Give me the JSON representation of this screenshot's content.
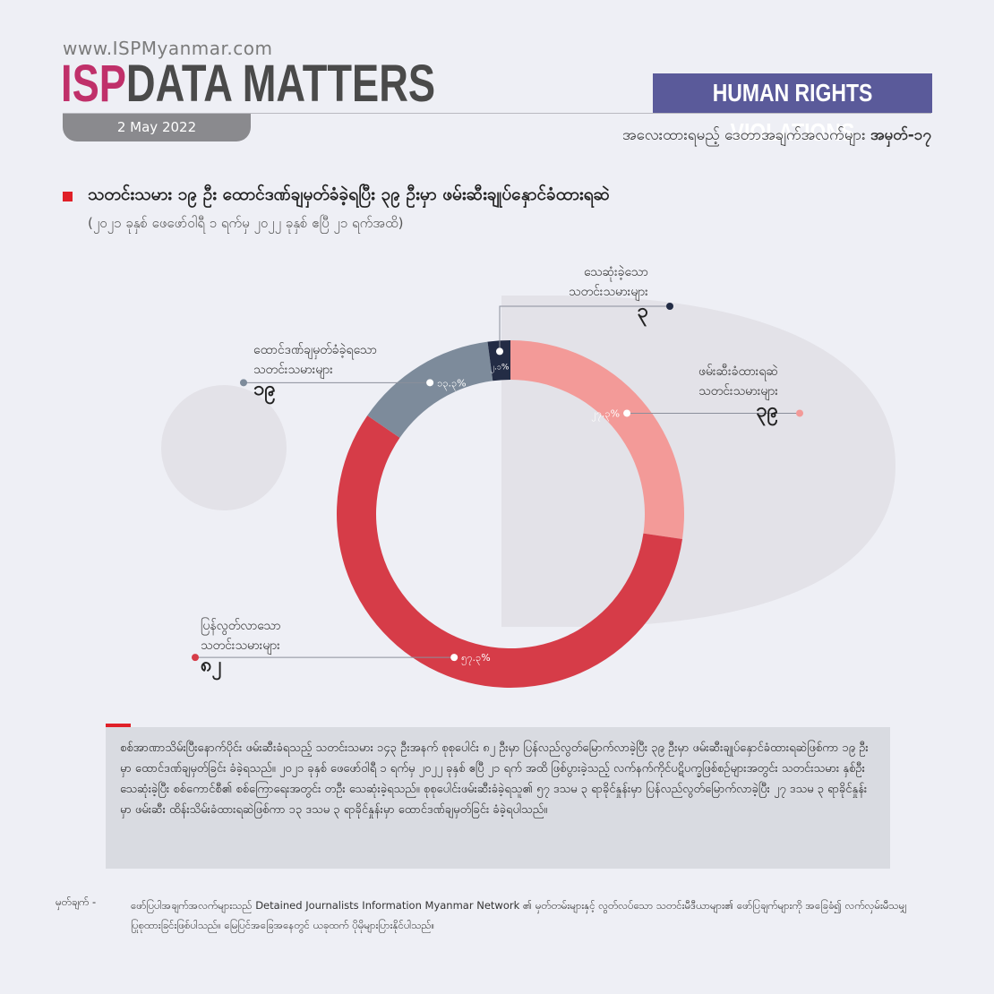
{
  "header": {
    "url": "www.ISPMyanmar.com",
    "brand_isp": "ISP",
    "brand_rest": "DATA MATTERS",
    "date": "2 May 2022",
    "category": "HUMAN RIGHTS VIOLATIONS",
    "series_label": "အလေးထားရမည့် ဒေတာအချက်အလက်များ",
    "series_number": "အမှတ်-၁၇"
  },
  "chart_data": {
    "type": "pie",
    "title": "သတင်းသမား ၁၉ ဦး ထောင်ဒဏ်ချမှတ်ခံခဲ့ရပြီး ၃၉ ဦးမှာ ဖမ်းဆီးချုပ်နှောင်ခံထားရဆဲ",
    "subtitle": "(၂၀၂၁ ခုနှစ် ဖေဖော်ဝါရီ ၁ ရက်မှ ၂၀၂၂ ခုနှစ် ဧပြီ ၂၁ ရက်အထိ)",
    "legend_position": "none",
    "slices": [
      {
        "name": "ဖမ်းဆီးခံထားရဆဲ\nသတင်းသမားများ",
        "count": "၃၉",
        "value": 27.3,
        "pct_label": "၂၇.၃%",
        "color": "#f39a98"
      },
      {
        "name": "ပြန်လွတ်လာသော\nသတင်းသမားများ",
        "count": "၈၂",
        "value": 57.3,
        "pct_label": "၅၇.၃%",
        "color": "#d63c48"
      },
      {
        "name": "ထောင်ဒဏ်ချမှတ်ခံခဲ့ရသော\nသတင်းသမားများ",
        "count": "၁၉",
        "value": 13.3,
        "pct_label": "၁၃.၃%",
        "color": "#7d8b9b"
      },
      {
        "name": "သေဆုံးခဲ့သော\nသတင်းသမားများ",
        "count": "၃",
        "value": 2.1,
        "pct_label": "၂.၁%",
        "color": "#232c45"
      }
    ]
  },
  "summary": "စစ်အာဏာသိမ်းပြီးနောက်ပိုင်း ဖမ်းဆီးခံရသည့် သတင်းသမား ၁၄၃ ဦးအနက် စုစုပေါင်း ၈၂ ဦးမှာ ပြန်လည်လွတ်မြောက်လာခဲ့ပြီး ၃၉ ဦးမှာ ဖမ်းဆီးချုပ်နှောင်ခံထားရဆဲဖြစ်ကာ ၁၉ ဦးမှာ ထောင်ဒဏ်ချမှတ်ခြင်း ခံခဲ့ရသည်။ ၂၀၂၁ ခုနှစ် ဖေဖော်ဝါရီ ၁ ရက်မှ ၂၀၂၂ ခုနှစ် ဧပြီ ၂၁ ရက် အထိ ဖြစ်ပွားခဲ့သည့် လက်နက်ကိုင်ပဋိပက္ခဖြစ်စဉ်များအတွင်း သတင်းသမား နှစ်ဦး သေဆုံးခဲ့ပြီး စစ်ကောင်စီ၏ စစ်ကြောရေးအတွင်း တဦး သေဆုံးခဲ့ရသည်။ စုစုပေါင်းဖမ်းဆီးခံခဲ့ရသူ၏ ၅၇ ဒသမ ၃ ရာခိုင်နှုန်းမှာ ပြန်လည်လွတ်မြောက်လာခဲ့ပြီး ၂၇ ဒသမ ၃ ရာခိုင်နှုန်းမှာ ဖမ်းဆီး ထိန်းသိမ်းခံထားရဆဲဖြစ်ကာ ၁၃ ဒသမ ၃ ရာခိုင်နှုန်းမှာ ထောင်ဒဏ်ချမှတ်ခြင်း ခံခဲ့ရပါသည်။",
  "note": {
    "key": "မှတ်ချက် -",
    "text": "ဖော်ပြပါအချက်အလက်များသည် Detained Journalists Information Myanmar Network ၏ မှတ်တမ်းများနှင့် လွတ်လပ်သော သတင်းမီဒီယာများ၏ ဖော်ပြချက်များကို အခြေခံ၍ လက်လှမ်းမီသမျှ ပြုစုထားခြင်းဖြစ်ပါသည်။ မြေပြင်အခြေအနေတွင် ယခုထက် ပိုမိုများပြားနိုင်ပါသည်။"
  }
}
